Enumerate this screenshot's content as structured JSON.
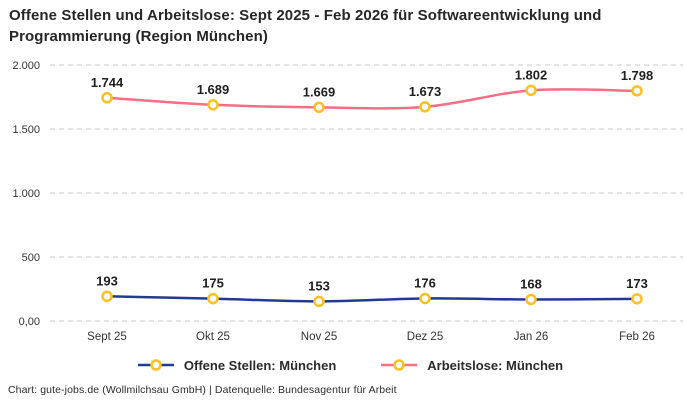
{
  "title": {
    "line1": "Offene Stellen und Arbeitslose: Sept 2025 - Feb 2026 für Softwareentwicklung und",
    "line2": "Programmierung (Region München)"
  },
  "footer": "Chart: gute-jobs.de (Wollmilchsau GmbH) | Datenquelle: Bundesagentur für Arbeit",
  "chart_data": {
    "type": "line",
    "title": "Offene Stellen und Arbeitslose: Sept 2025 - Feb 2026 für Softwareentwicklung und Programmierung (Region München)",
    "categories": [
      "Sept 25",
      "Okt 25",
      "Nov 25",
      "Dez 25",
      "Jan 26",
      "Feb 26"
    ],
    "series": [
      {
        "name": "Offene Stellen: München",
        "values": [
          193,
          175,
          153,
          176,
          168,
          173
        ],
        "labels": [
          "193",
          "175",
          "153",
          "176",
          "168",
          "173"
        ],
        "color": "#233a94"
      },
      {
        "name": "Arbeitslose: München",
        "values": [
          1744,
          1689,
          1669,
          1673,
          1802,
          1798
        ],
        "labels": [
          "1.744",
          "1.689",
          "1.669",
          "1.673",
          "1.802",
          "1.798"
        ],
        "color": "#f76e85"
      }
    ],
    "marker": {
      "fill": "#ffffff",
      "stroke": "#fdc022"
    },
    "ylim": [
      0,
      2000
    ],
    "yticks": [
      {
        "value": 2000,
        "label": "2.000"
      },
      {
        "value": 1500,
        "label": "1.500"
      },
      {
        "value": 1000,
        "label": "1.000"
      },
      {
        "value": 500,
        "label": "500"
      },
      {
        "value": 0,
        "label": "0,00"
      }
    ],
    "grid": "horizontal-dashed",
    "grid_color": "#c9c9c9",
    "label_color": "#1f1f1f",
    "tick_color": "#333333",
    "legend_position": "bottom"
  }
}
